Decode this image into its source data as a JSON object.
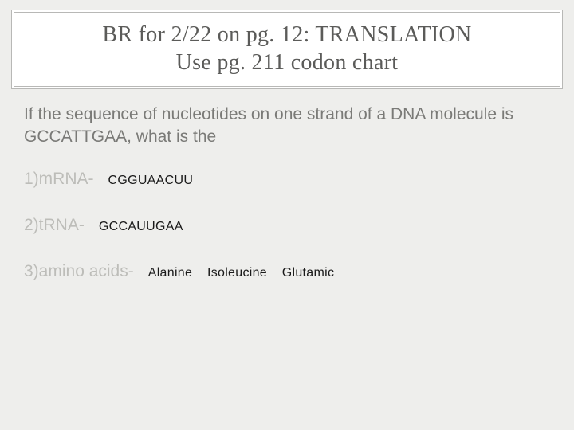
{
  "title": {
    "line1": "BR for 2/22 on pg. 12: TRANSLATION",
    "line2": "Use pg. 211 codon chart"
  },
  "prompt": "If the sequence of nucleotides on one strand of a DNA molecule is GCCATTGAA, what is the",
  "items": [
    {
      "label": "1)mRNA-",
      "answer": "CGGUAACUU"
    },
    {
      "label": "2)tRNA-",
      "answer": "GCCAUUGAA"
    },
    {
      "label": "3)amino acids-",
      "answer": "Alanine   Isoleucine   Glutamic"
    }
  ],
  "style": {
    "background": "#eeeeec",
    "title_border": "#b8b8b6",
    "title_text": "#5b5b59",
    "prompt_text": "#7a7a77",
    "label_text": "#bdbdb9",
    "answer_text": "#1a1a1a",
    "title_fontsize": 28,
    "body_fontsize": 21,
    "answer_fontsize": 16
  }
}
